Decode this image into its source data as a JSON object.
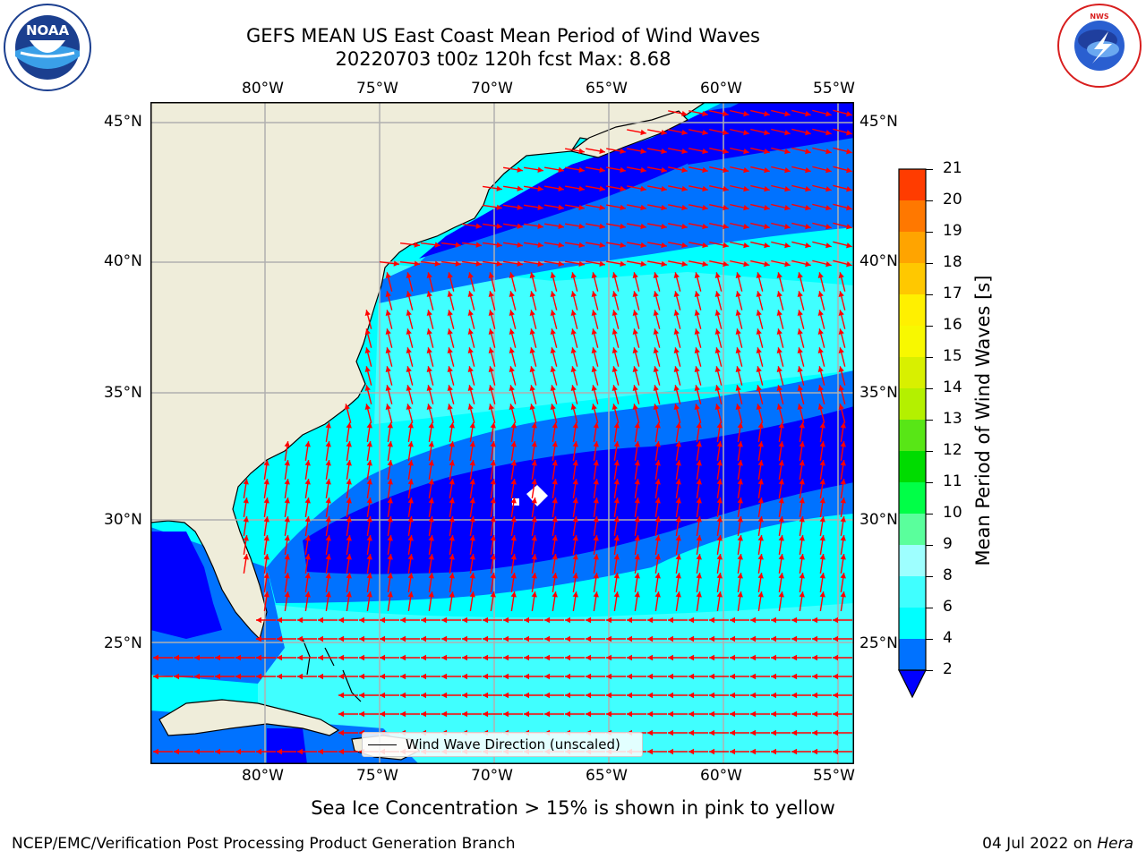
{
  "header": {
    "title_line1": "GEFS MEAN US East Coast Mean Period of Wind Waves",
    "title_line2": "20220703 t00z 120h fcst   Max: 8.68"
  },
  "logos": {
    "left": {
      "name": "noaa-logo",
      "text": "NOAA",
      "ring_text": "NATIONAL OCEANIC AND ATMOSPHERIC ADMINISTRATION · U.S. DEPARTMENT OF COMMERCE"
    },
    "right": {
      "name": "nws-logo",
      "ring_text": "NATIONAL WEATHER SERVICE"
    }
  },
  "map": {
    "lon_labels": [
      "80°W",
      "75°W",
      "70°W",
      "65°W",
      "60°W",
      "55°W"
    ],
    "lat_labels": [
      "45°N",
      "40°N",
      "35°N",
      "30°N",
      "25°N"
    ],
    "lon_range": [
      -85,
      -54.2
    ],
    "lat_range": [
      20.5,
      46
    ],
    "legend_label": "Wind Wave Direction (unscaled)",
    "land_color": "#efedda",
    "arrow_color": "#ff0000",
    "grid_color": "#b0b0b0"
  },
  "colorbar": {
    "label": "Mean Period of Wind Waves [s]",
    "ticks": [
      "2",
      "4",
      "6",
      "8",
      "9",
      "10",
      "11",
      "12",
      "13",
      "14",
      "15",
      "16",
      "17",
      "18",
      "19",
      "20",
      "21"
    ],
    "colors": [
      "#0072ff",
      "#00ffff",
      "#40ffff",
      "#9effff",
      "#5aff9c",
      "#00ff47",
      "#00dc00",
      "#58e616",
      "#b4f000",
      "#d8f000",
      "#f8f800",
      "#fff000",
      "#ffc800",
      "#ffa400",
      "#ff7800",
      "#ff3c00",
      "#ff0000"
    ],
    "under_color": "#0000ff"
  },
  "caption": "Sea Ice Concentration > 15% is shown in pink to yellow",
  "footer": {
    "left": "NCEP/EMC/Verification Post Processing Product Generation Branch",
    "right_date": "04 Jul 2022 on",
    "right_host": "Hera"
  }
}
